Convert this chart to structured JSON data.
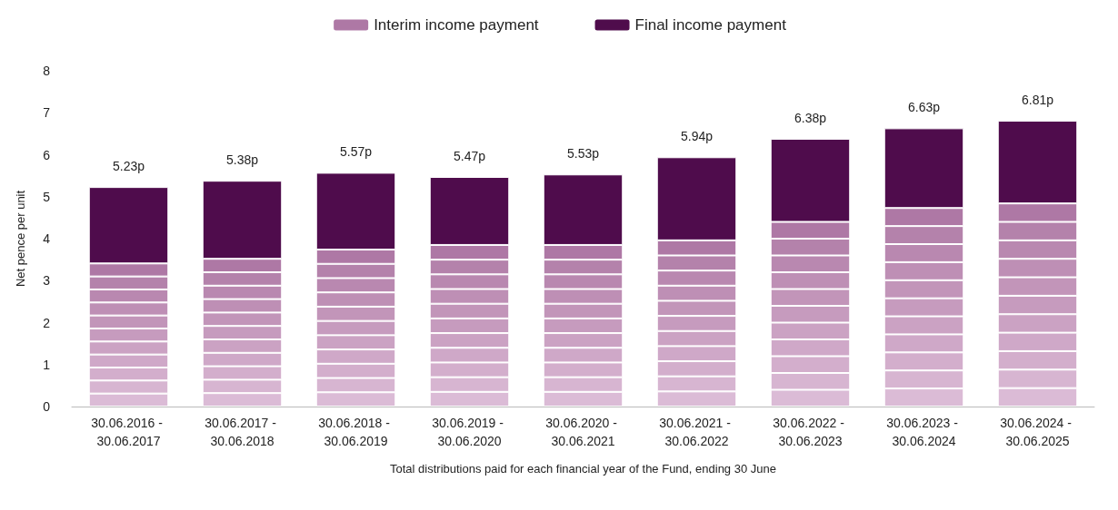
{
  "chart_data": {
    "type": "bar",
    "stacked": true,
    "xlabel": "Total distributions paid for each financial year of the Fund, ending 30 June",
    "ylabel": "Net pence per unit",
    "categories": [
      "30.06.2016 - 30.06.2017",
      "30.06.2017 - 30.06.2018",
      "30.06.2018 - 30.06.2019",
      "30.06.2019 - 30.06.2020",
      "30.06.2020 - 30.06.2021",
      "30.06.2021 - 30.06.2022",
      "30.06.2022 - 30.06.2023",
      "30.06.2023 - 30.06.2024",
      "30.06.2024 - 30.06.2025"
    ],
    "series": [
      {
        "color": "#dbbbd6",
        "values": [
          0.31,
          0.32,
          0.34,
          0.35,
          0.35,
          0.36,
          0.4,
          0.43,
          0.44
        ]
      },
      {
        "color": "#d7b5d1",
        "values": [
          0.31,
          0.32,
          0.34,
          0.35,
          0.35,
          0.36,
          0.4,
          0.43,
          0.44
        ]
      },
      {
        "color": "#d3aecc",
        "values": [
          0.31,
          0.32,
          0.34,
          0.35,
          0.35,
          0.36,
          0.4,
          0.43,
          0.44
        ]
      },
      {
        "color": "#cfa8c8",
        "values": [
          0.31,
          0.32,
          0.34,
          0.35,
          0.35,
          0.36,
          0.4,
          0.43,
          0.44
        ]
      },
      {
        "color": "#cba2c3",
        "values": [
          0.31,
          0.32,
          0.34,
          0.35,
          0.35,
          0.36,
          0.4,
          0.43,
          0.44
        ]
      },
      {
        "color": "#c69bbe",
        "values": [
          0.31,
          0.32,
          0.34,
          0.35,
          0.35,
          0.36,
          0.4,
          0.43,
          0.44
        ]
      },
      {
        "color": "#c295b9",
        "values": [
          0.31,
          0.32,
          0.34,
          0.35,
          0.35,
          0.36,
          0.4,
          0.43,
          0.44
        ]
      },
      {
        "color": "#be8fb5",
        "values": [
          0.31,
          0.32,
          0.34,
          0.35,
          0.35,
          0.36,
          0.4,
          0.43,
          0.44
        ]
      },
      {
        "color": "#b988b0",
        "values": [
          0.31,
          0.32,
          0.34,
          0.35,
          0.35,
          0.36,
          0.4,
          0.43,
          0.44
        ]
      },
      {
        "color": "#b482ab",
        "values": [
          0.31,
          0.32,
          0.34,
          0.35,
          0.35,
          0.36,
          0.4,
          0.43,
          0.44
        ]
      },
      {
        "name": "Interim income payment",
        "color": "#ae78a5",
        "values": [
          0.31,
          0.32,
          0.34,
          0.35,
          0.35,
          0.36,
          0.4,
          0.43,
          0.44
        ]
      },
      {
        "name": "Final income payment",
        "color": "#4f0c4c",
        "values": [
          1.82,
          1.86,
          1.83,
          1.62,
          1.68,
          1.98,
          1.98,
          1.9,
          1.97
        ]
      }
    ],
    "totals": [
      "5.23p",
      "5.38p",
      "5.57p",
      "5.47p",
      "5.53p",
      "5.94p",
      "6.38p",
      "6.63p",
      "6.81p"
    ],
    "ylim": [
      0,
      8
    ],
    "yticks": [
      0,
      1,
      2,
      3,
      4,
      5,
      6,
      7,
      8
    ],
    "grid": false,
    "legend": "top"
  }
}
